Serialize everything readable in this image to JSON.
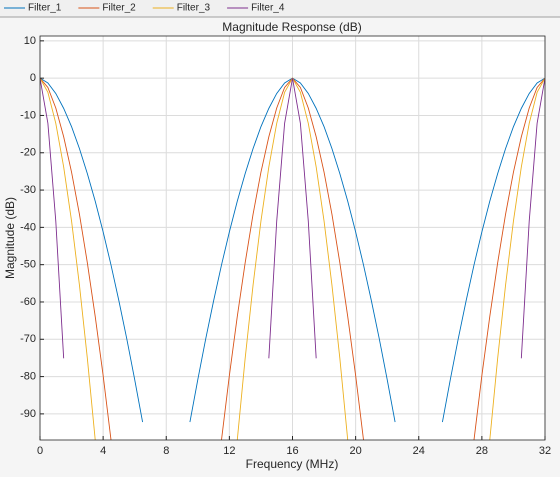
{
  "chart_data": {
    "type": "line",
    "title": "Magnitude Response (dB)",
    "x_label": "Frequency (MHz)",
    "y_label": "Magnitude (dB)",
    "legend": "top",
    "grid": true,
    "xlim": [
      0,
      32
    ],
    "xticks": [
      0,
      4,
      8,
      12,
      16,
      20,
      24,
      28,
      32
    ],
    "ylim": [
      -97,
      11.3
    ],
    "yticks": [
      10,
      0,
      -10,
      -20,
      -30,
      -40,
      -50,
      -60,
      -70,
      -80,
      -90
    ],
    "x": [
      0,
      0.5,
      1,
      1.5,
      2,
      2.5,
      3,
      3.5,
      4,
      4.5,
      5,
      5.5,
      6,
      6.5,
      7,
      7.5,
      8,
      8.5,
      9,
      9.5,
      10,
      10.5,
      11,
      11.5,
      12,
      12.5,
      13,
      13.5,
      14,
      14.5,
      15,
      15.5,
      16,
      16.5,
      17,
      17.5,
      18,
      18.5,
      19,
      19.5,
      20,
      20.5,
      21,
      21.5,
      22,
      22.5,
      23,
      23.5,
      24,
      24.5,
      25,
      25.5,
      26,
      26.5,
      27,
      27.5,
      28,
      28.5,
      29,
      29.5,
      30,
      30.5,
      31,
      31.5,
      32
    ],
    "series": [
      {
        "name": "Filter_1",
        "color": "#0072BD",
        "values": [
          0,
          -1.3,
          -4.1,
          -8.1,
          -13,
          -18.9,
          -25.6,
          -33,
          -41.2,
          -50.1,
          -59.7,
          -69.9,
          -80.8,
          -92.2,
          null,
          null,
          null,
          null,
          null,
          -92.2,
          -80.8,
          -69.9,
          -59.7,
          -50.1,
          -41.2,
          -33,
          -25.6,
          -18.9,
          -13,
          -8.1,
          -4.1,
          -1.3,
          0,
          -1.3,
          -4.1,
          -8.1,
          -13,
          -18.9,
          -25.6,
          -33,
          -41.2,
          -50.1,
          -59.7,
          -69.9,
          -80.8,
          -92.2,
          null,
          null,
          null,
          null,
          null,
          -92.2,
          -80.8,
          -69.9,
          -59.7,
          -50.1,
          -41.2,
          -33,
          -25.6,
          -18.9,
          -13,
          -8.1,
          -4.1,
          -1.3,
          0
        ]
      },
      {
        "name": "Filter_2",
        "color": "#D95319",
        "values": [
          0,
          -2.5,
          -8,
          -15.7,
          -25.2,
          -36.5,
          -49.5,
          -63.9,
          -79.7,
          -97,
          null,
          null,
          null,
          null,
          null,
          null,
          null,
          null,
          null,
          null,
          null,
          null,
          null,
          -97,
          -79.7,
          -63.9,
          -49.5,
          -36.5,
          -25.2,
          -15.7,
          -8,
          -2.5,
          0,
          -2.5,
          -8,
          -15.7,
          -25.2,
          -36.5,
          -49.5,
          -63.9,
          -79.7,
          -97,
          null,
          null,
          null,
          null,
          null,
          null,
          null,
          null,
          null,
          null,
          null,
          null,
          null,
          -97,
          -79.7,
          -63.9,
          -49.5,
          -36.5,
          -25.2,
          -15.7,
          -8,
          -2.5,
          0
        ]
      },
      {
        "name": "Filter_3",
        "color": "#EDB120",
        "values": [
          0,
          -3.8,
          -12.1,
          -23.8,
          -38.3,
          -55.5,
          -75.1,
          -97,
          null,
          null,
          null,
          null,
          null,
          null,
          null,
          null,
          null,
          null,
          null,
          null,
          null,
          null,
          null,
          null,
          null,
          -97,
          -75.1,
          -55.5,
          -38.3,
          -23.8,
          -12.1,
          -3.8,
          0,
          -3.8,
          -12.1,
          -23.8,
          -38.3,
          -55.5,
          -75.1,
          -97,
          null,
          null,
          null,
          null,
          null,
          null,
          null,
          null,
          null,
          null,
          null,
          null,
          null,
          null,
          null,
          null,
          null,
          -97,
          -75.1,
          -55.5,
          -38.3,
          -23.8,
          -12.1,
          -3.8,
          0
        ]
      },
      {
        "name": "Filter_4",
        "color": "#7E2F8E",
        "values": [
          0,
          -12.1,
          -38.3,
          -75.1,
          null,
          null,
          null,
          null,
          null,
          null,
          null,
          null,
          null,
          null,
          null,
          null,
          null,
          null,
          null,
          null,
          null,
          null,
          null,
          null,
          null,
          null,
          null,
          null,
          null,
          -75.1,
          -38.3,
          -12.1,
          0,
          -12.1,
          -38.3,
          -75.1,
          null,
          null,
          null,
          null,
          null,
          null,
          null,
          null,
          null,
          null,
          null,
          null,
          null,
          null,
          null,
          null,
          null,
          null,
          null,
          null,
          null,
          null,
          null,
          null,
          null,
          -75.1,
          -38.3,
          -12.1,
          0
        ]
      }
    ]
  }
}
